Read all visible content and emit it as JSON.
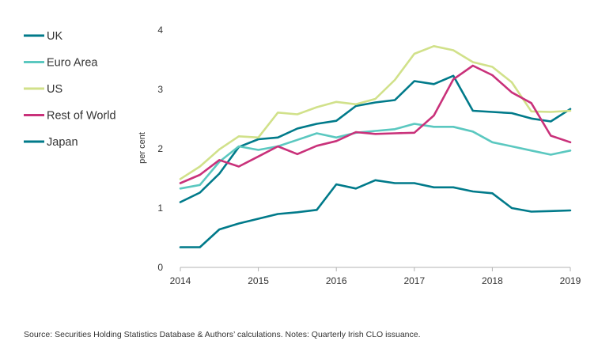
{
  "chart_data": {
    "type": "line",
    "title": "",
    "xlabel": "",
    "ylabel": "per cent",
    "xlim": [
      2014,
      2019
    ],
    "ylim": [
      0,
      4
    ],
    "x_ticks": [
      "2014",
      "2015",
      "2016",
      "2017",
      "2018",
      "2019"
    ],
    "y_ticks": [
      "0",
      "1",
      "2",
      "3",
      "4"
    ],
    "grid": false,
    "legend_position": "left",
    "x": [
      2014.0,
      2014.25,
      2014.5,
      2014.75,
      2015.0,
      2015.25,
      2015.5,
      2015.75,
      2016.0,
      2016.25,
      2016.5,
      2016.75,
      2017.0,
      2017.25,
      2017.5,
      2017.75,
      2018.0,
      2018.25,
      2018.5,
      2018.75,
      2019.0
    ],
    "series": [
      {
        "name": "UK",
        "color": "#007a8a",
        "values": [
          1.1,
          1.26,
          1.58,
          2.03,
          2.16,
          2.19,
          2.34,
          2.42,
          2.47,
          2.72,
          2.78,
          2.82,
          3.14,
          3.09,
          3.23,
          2.64,
          2.62,
          2.6,
          2.51,
          2.46,
          2.67
        ]
      },
      {
        "name": "Euro Area",
        "color": "#5bc8c0",
        "values": [
          1.33,
          1.39,
          1.78,
          2.04,
          1.98,
          2.04,
          2.15,
          2.26,
          2.19,
          2.27,
          2.3,
          2.33,
          2.42,
          2.37,
          2.37,
          2.29,
          2.11,
          2.04,
          1.97,
          1.9,
          1.97
        ]
      },
      {
        "name": "US",
        "color": "#d1e18a",
        "values": [
          1.49,
          1.7,
          1.99,
          2.21,
          2.19,
          2.61,
          2.58,
          2.7,
          2.79,
          2.75,
          2.84,
          3.16,
          3.6,
          3.73,
          3.66,
          3.46,
          3.38,
          3.12,
          2.63,
          2.62,
          2.64
        ]
      },
      {
        "name": "Rest of World",
        "color": "#c9317a",
        "values": [
          1.42,
          1.56,
          1.81,
          1.7,
          1.87,
          2.04,
          1.91,
          2.05,
          2.13,
          2.28,
          2.25,
          2.26,
          2.27,
          2.56,
          3.17,
          3.4,
          3.24,
          2.95,
          2.77,
          2.22,
          2.11
        ]
      },
      {
        "name": "Japan",
        "color": "#007a8a",
        "values": [
          0.34,
          0.34,
          0.64,
          0.74,
          0.82,
          0.9,
          0.93,
          0.97,
          1.4,
          1.33,
          1.47,
          1.42,
          1.42,
          1.35,
          1.35,
          1.28,
          1.25,
          1.0,
          0.94,
          0.95,
          0.96
        ]
      }
    ]
  },
  "source_note": "Source: Securities Holding Statistics Database & Authors’ calculations. Notes: Quarterly Irish CLO issuance."
}
